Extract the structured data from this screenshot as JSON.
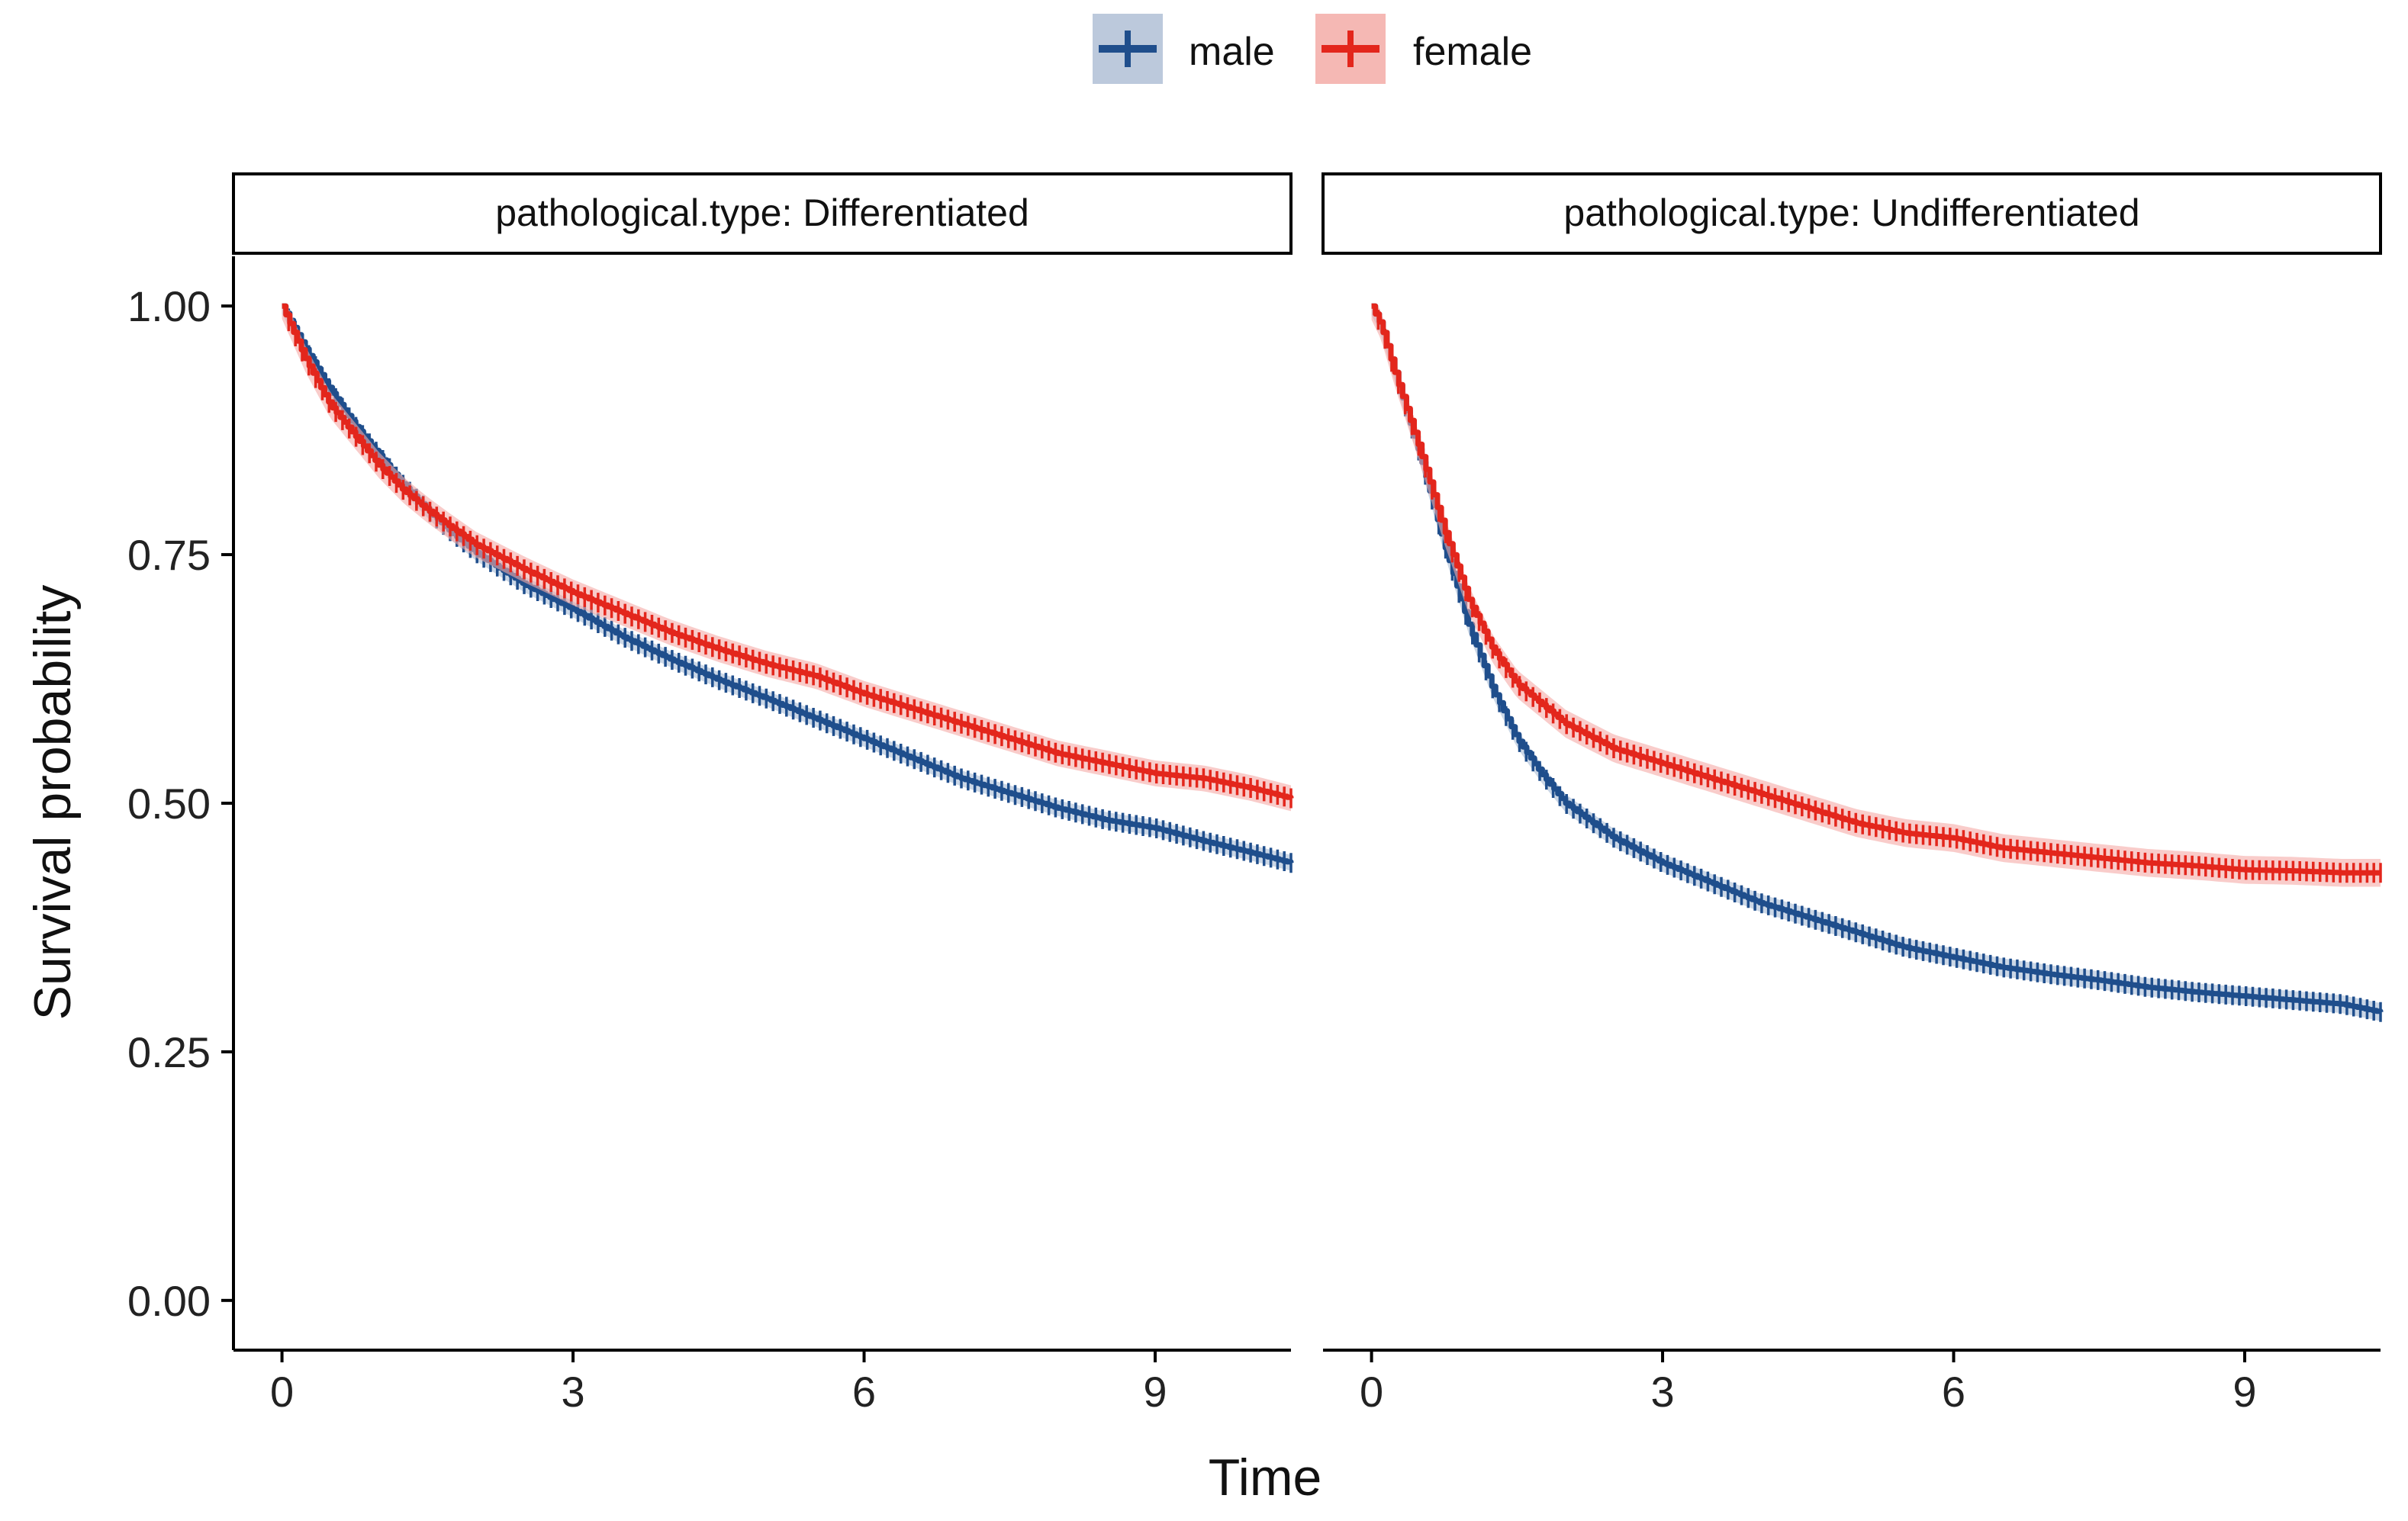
{
  "colors": {
    "male": "#1f4e8c",
    "female": "#e3261c",
    "male_ci": "#a9bcd6",
    "female_ci": "#f5aaa6",
    "axis": "#000000"
  },
  "legend": {
    "items": [
      {
        "key": "male",
        "label": "male"
      },
      {
        "key": "female",
        "label": "female"
      }
    ]
  },
  "chart_data": {
    "type": "line",
    "subtype": "kaplan-meier survival curves, faceted",
    "xlabel": "Time",
    "ylabel": "Survival probability",
    "xlim": [
      -0.5,
      10.4
    ],
    "ylim": [
      -0.05,
      1.05
    ],
    "x_ticks": [
      0,
      3,
      6,
      9
    ],
    "x_tick_labels": [
      "0",
      "3",
      "6",
      "9"
    ],
    "y_ticks": [
      0,
      0.25,
      0.5,
      0.75,
      1
    ],
    "y_tick_labels": [
      "0.00",
      "0.25",
      "0.50",
      "0.75",
      "1.00"
    ],
    "grid": false,
    "legend_position": "top",
    "facets": [
      {
        "label": "pathological.type: Differentiated",
        "series": [
          {
            "name": "male",
            "x": [
              0,
              0.25,
              0.5,
              0.75,
              1,
              1.25,
              1.5,
              1.75,
              2,
              2.5,
              3,
              3.5,
              4,
              4.5,
              5,
              5.5,
              6,
              6.5,
              7,
              7.5,
              8,
              8.5,
              9,
              9.5,
              10,
              10.4
            ],
            "y": [
              1.0,
              0.955,
              0.915,
              0.88,
              0.85,
              0.82,
              0.795,
              0.772,
              0.752,
              0.72,
              0.695,
              0.668,
              0.645,
              0.624,
              0.605,
              0.585,
              0.565,
              0.545,
              0.525,
              0.51,
              0.495,
              0.483,
              0.475,
              0.462,
              0.45,
              0.44
            ],
            "ci_halfwidth": 0.008
          },
          {
            "name": "female",
            "x": [
              0,
              0.25,
              0.5,
              0.75,
              1,
              1.25,
              1.5,
              1.75,
              2,
              2.5,
              3,
              3.5,
              4,
              4.5,
              5,
              5.5,
              6,
              6.5,
              7,
              7.5,
              8,
              8.5,
              9,
              9.5,
              10,
              10.4
            ],
            "y": [
              1.0,
              0.945,
              0.9,
              0.87,
              0.84,
              0.815,
              0.795,
              0.777,
              0.76,
              0.735,
              0.712,
              0.692,
              0.672,
              0.655,
              0.64,
              0.628,
              0.61,
              0.595,
              0.58,
              0.565,
              0.55,
              0.54,
              0.53,
              0.525,
              0.515,
              0.505
            ],
            "ci_halfwidth": 0.013
          }
        ]
      },
      {
        "label": "pathological.type: Undifferentiated",
        "series": [
          {
            "name": "male",
            "x": [
              0,
              0.1,
              0.25,
              0.5,
              0.75,
              1,
              1.25,
              1.5,
              1.75,
              2,
              2.5,
              3,
              3.5,
              4,
              4.5,
              5,
              5.5,
              6,
              6.5,
              7,
              7.5,
              8,
              8.5,
              9,
              9.5,
              10,
              10.4
            ],
            "y": [
              1.0,
              0.98,
              0.93,
              0.85,
              0.76,
              0.68,
              0.615,
              0.565,
              0.53,
              0.5,
              0.465,
              0.44,
              0.42,
              0.4,
              0.385,
              0.37,
              0.355,
              0.345,
              0.335,
              0.328,
              0.322,
              0.315,
              0.31,
              0.306,
              0.302,
              0.298,
              0.29
            ],
            "ci_halfwidth": 0.009
          },
          {
            "name": "female",
            "x": [
              0,
              0.1,
              0.25,
              0.5,
              0.75,
              1,
              1.25,
              1.5,
              1.75,
              2,
              2.5,
              3,
              3.5,
              4,
              4.5,
              5,
              5.5,
              6,
              6.5,
              7,
              7.5,
              8,
              8.5,
              9,
              9.5,
              10,
              10.4
            ],
            "y": [
              1.0,
              0.98,
              0.93,
              0.855,
              0.775,
              0.705,
              0.655,
              0.62,
              0.6,
              0.58,
              0.555,
              0.54,
              0.525,
              0.51,
              0.495,
              0.48,
              0.47,
              0.465,
              0.455,
              0.45,
              0.445,
              0.44,
              0.437,
              0.433,
              0.432,
              0.43,
              0.43
            ],
            "ci_halfwidth": 0.014
          }
        ]
      }
    ]
  }
}
